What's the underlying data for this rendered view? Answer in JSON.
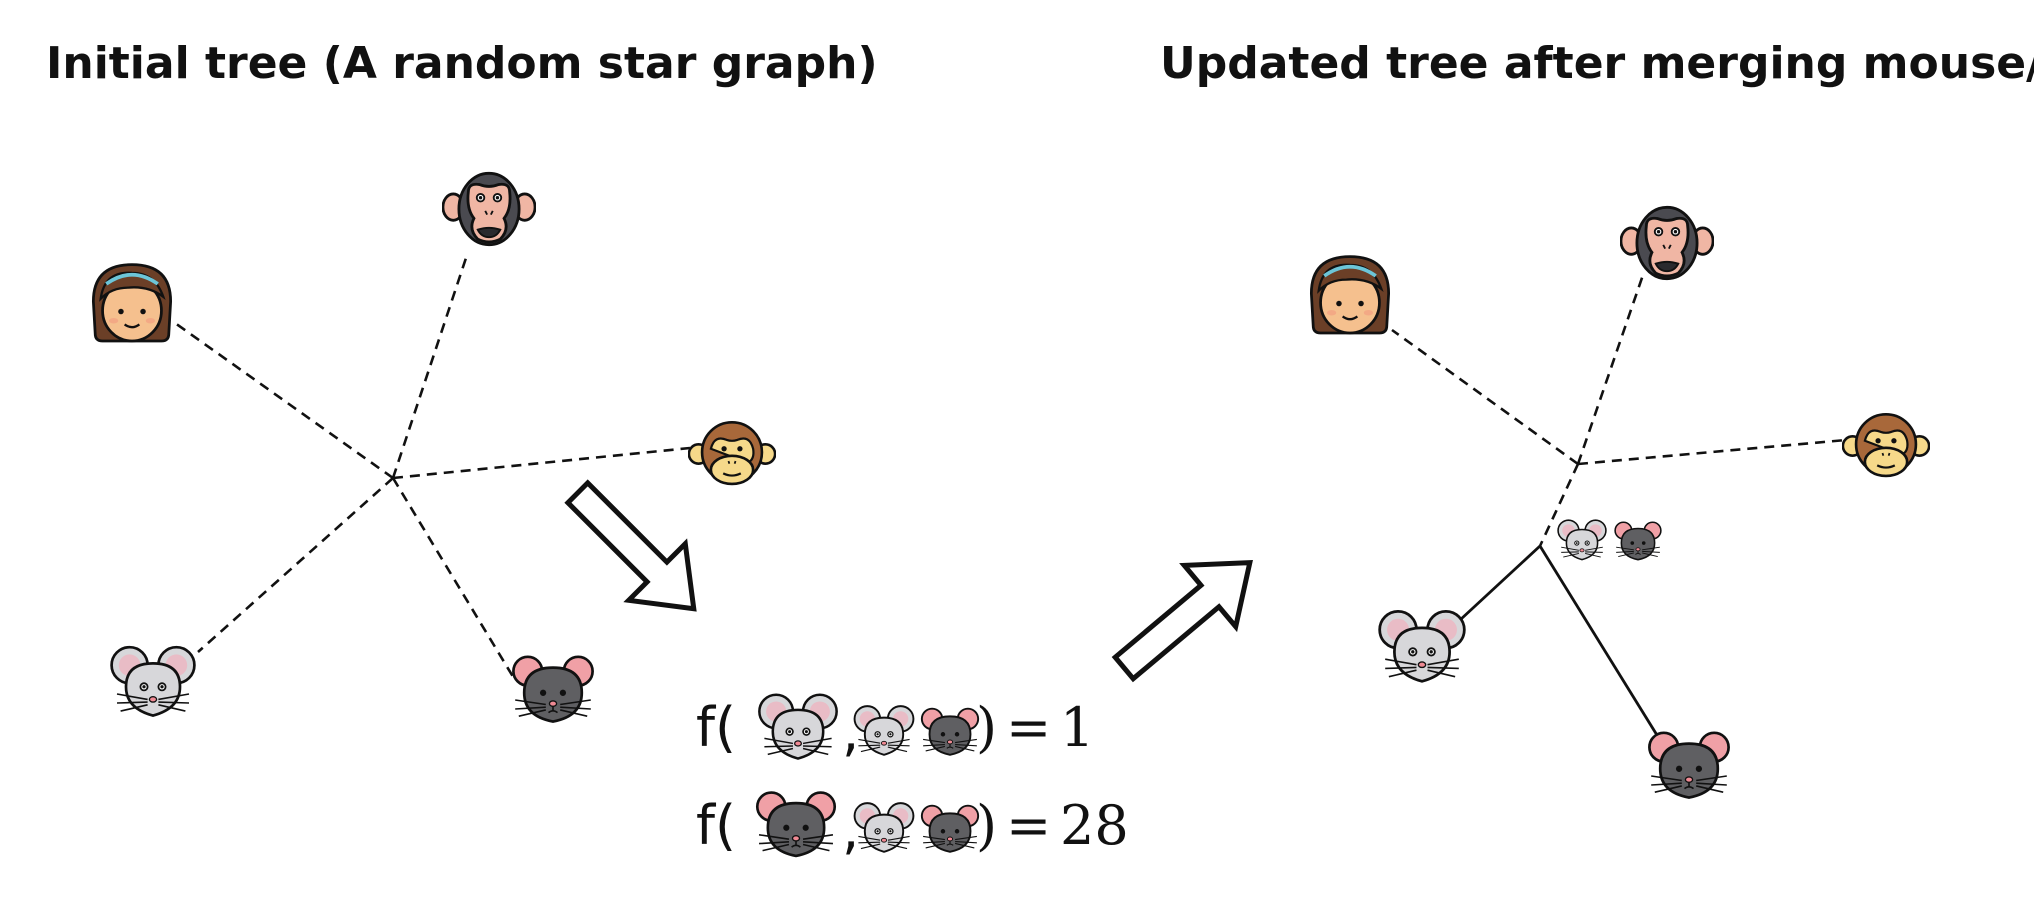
{
  "titles": {
    "left": "Initial tree (A random star graph)",
    "right": "Updated tree after merging mouse/rat"
  },
  "equations": [
    {
      "func": "f(",
      "comma": ",",
      "close": ")",
      "equals": "=",
      "value": "1",
      "query_icon": "mouse-icon"
    },
    {
      "func": "f(",
      "comma": ",",
      "close": ")",
      "equals": "=",
      "value": "28",
      "query_icon": "rat-icon"
    }
  ],
  "icons": {
    "girl": "girl-face-icon",
    "chimp": "chimpanzee-face-icon",
    "monkey": "monkey-face-icon",
    "mouse": "mouse-face-icon",
    "rat": "rat-face-icon"
  },
  "colors": {
    "skin": "#f5c08e",
    "hair": "#6b3f27",
    "mouse": "#d7d7da",
    "rat": "#5f5f62",
    "ear_pink": "#f0a0a6",
    "chimp": "#4a4a50",
    "chimp_face": "#f0b6a4",
    "monkey": "#a8683a",
    "monkey_face": "#f6d98a"
  }
}
